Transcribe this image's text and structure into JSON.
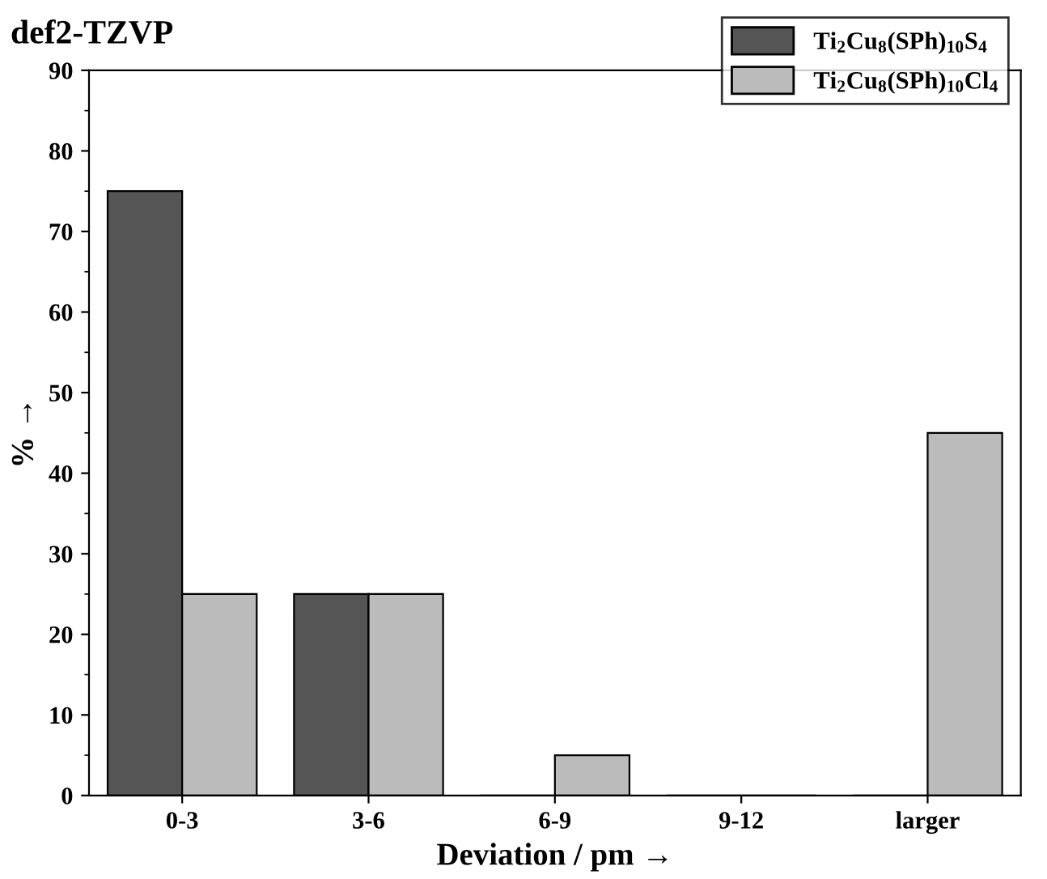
{
  "chart_data": {
    "type": "bar",
    "title": "def2-TZVP",
    "xlabel": "Deviation / pm →",
    "ylabel": "% →",
    "categories": [
      "0-3",
      "3-6",
      "6-9",
      "9-12",
      "larger"
    ],
    "series": [
      {
        "name": "Ti$_{2}$Cu$_{8}$(SPh)$_{10}$S$_{4}$",
        "color": "#555555",
        "values": [
          75,
          25,
          0,
          0,
          0
        ]
      },
      {
        "name": "Ti$_{2}$Cu$_{8}$(SPh)$_{10}$Cl$_{4}$",
        "color": "#bbbbbb",
        "values": [
          25,
          25,
          5,
          0,
          45
        ]
      }
    ],
    "ylim": [
      0,
      90
    ],
    "yticks": [
      0,
      10,
      20,
      30,
      40,
      50,
      60,
      70,
      80,
      90
    ],
    "grid": false,
    "legend": "top right"
  }
}
